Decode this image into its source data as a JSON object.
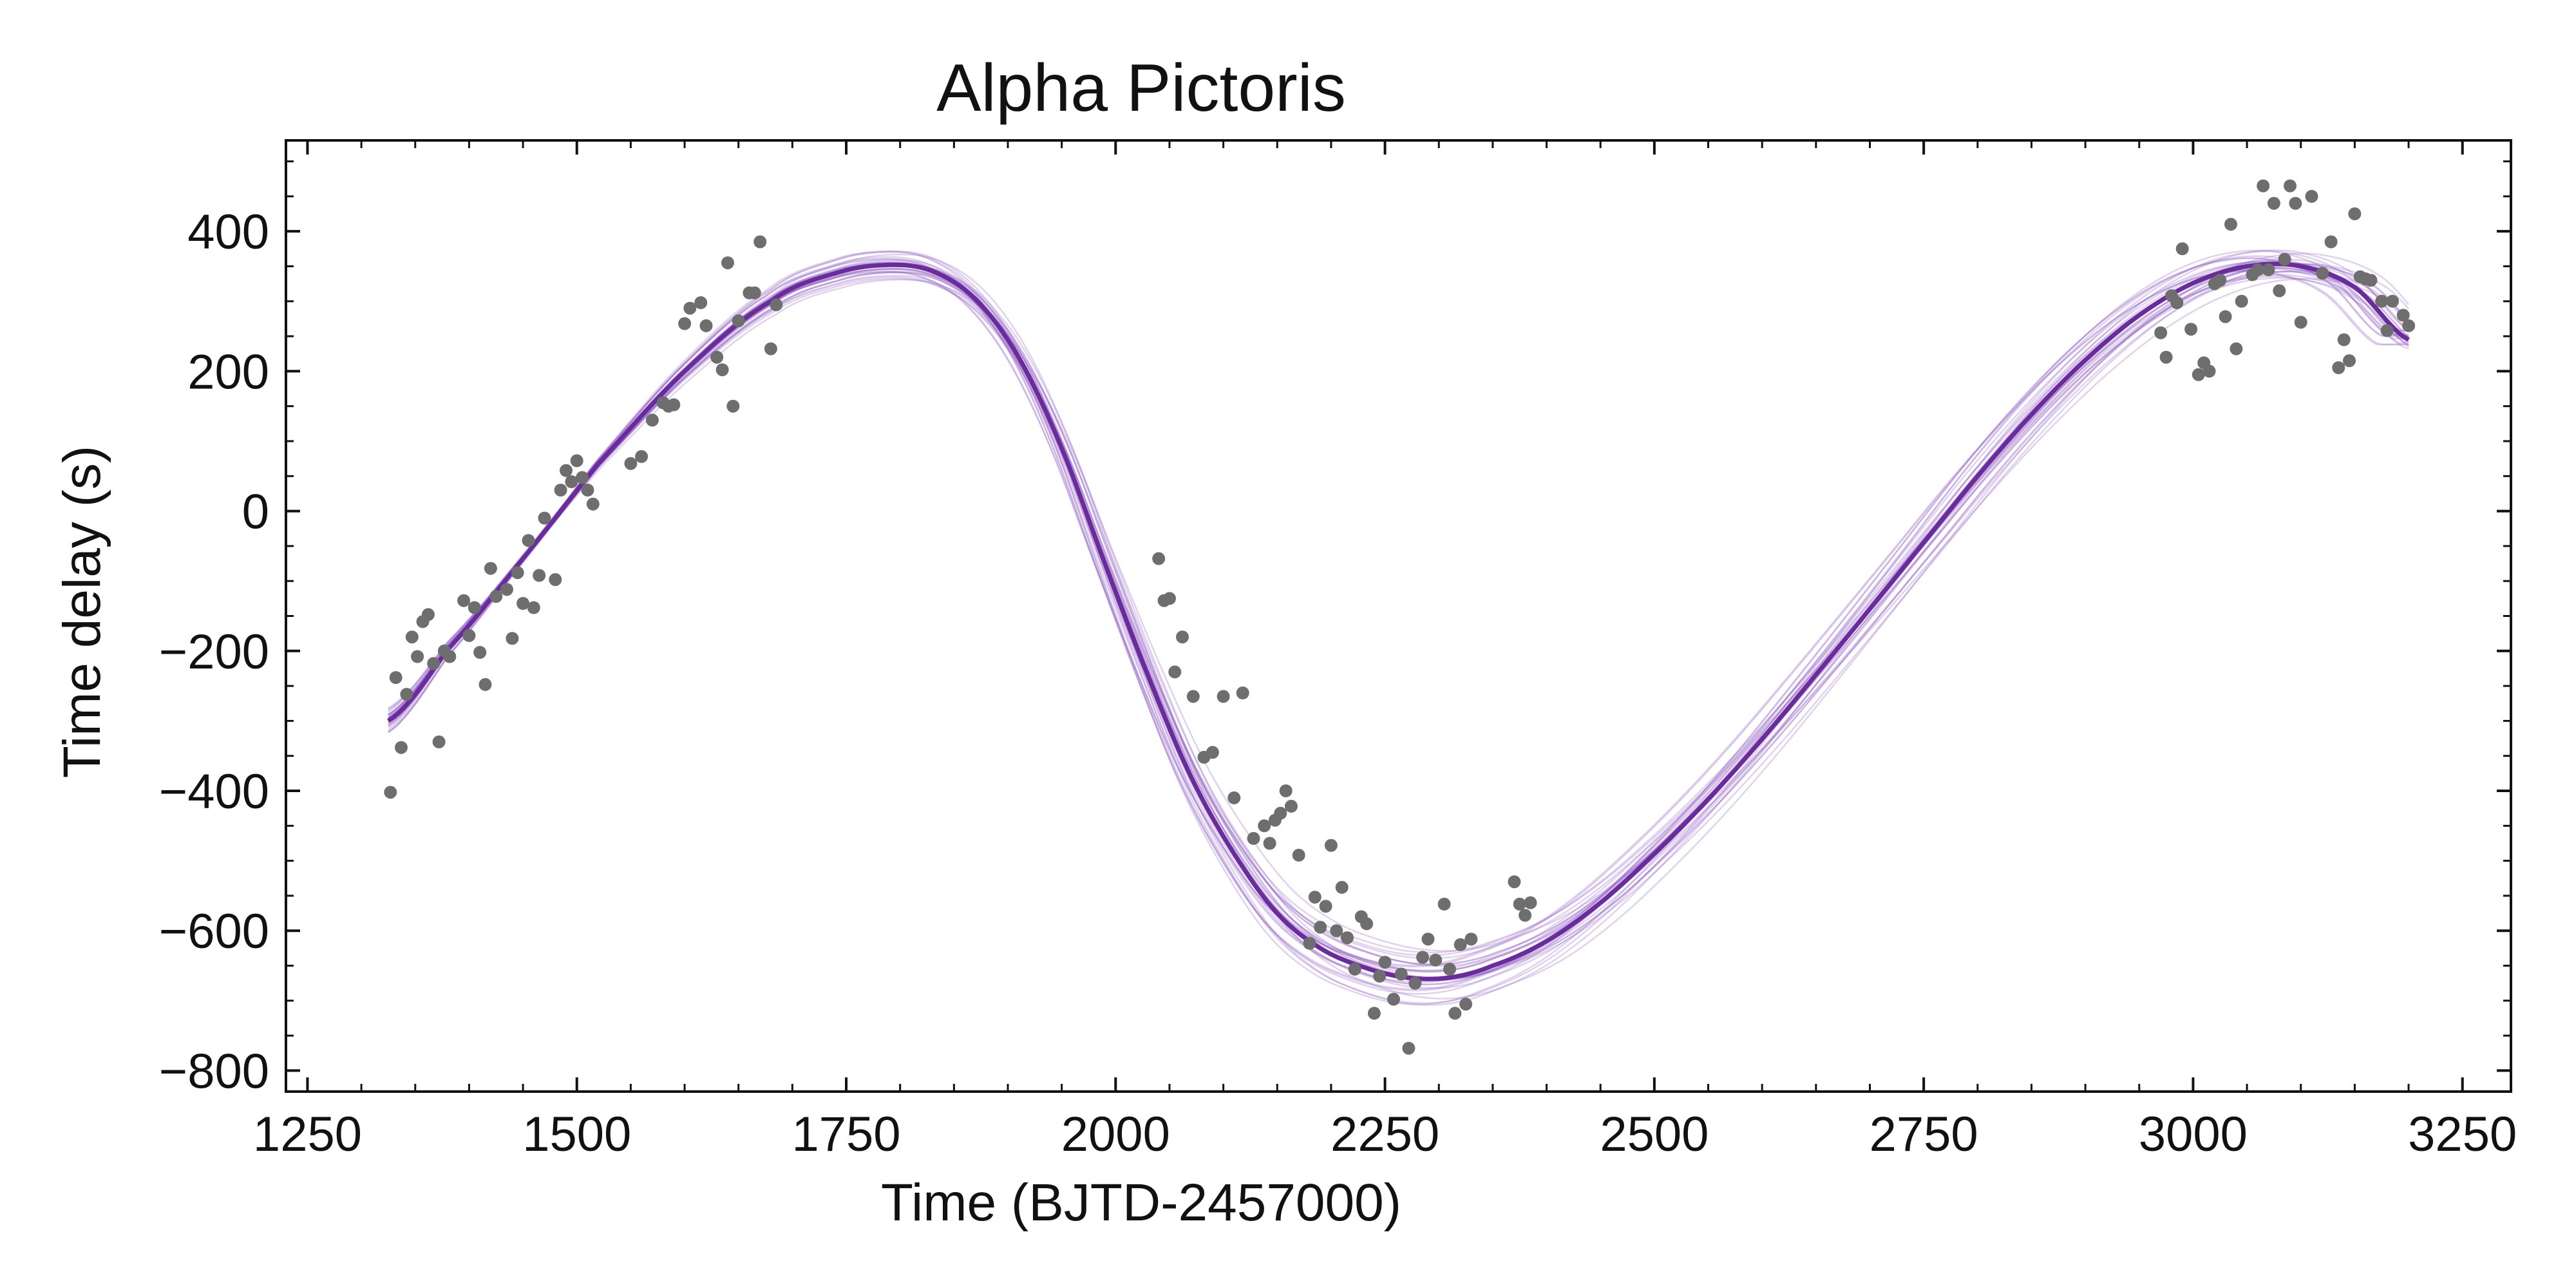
{
  "chart_data": {
    "type": "scatter",
    "title": "Alpha Pictoris",
    "xlabel": "Time (BJTD-2457000)",
    "ylabel": "Time delay (s)",
    "xlim": [
      1230,
      3295
    ],
    "ylim": [
      -830,
      530
    ],
    "x_ticks": [
      1250,
      1500,
      1750,
      2000,
      2250,
      2500,
      2750,
      3000,
      3250
    ],
    "x_tick_labels": [
      "1250",
      "1500",
      "1750",
      "2000",
      "2250",
      "2500",
      "2750",
      "3000",
      "3250"
    ],
    "y_ticks": [
      -800,
      -600,
      -400,
      -200,
      0,
      200,
      400
    ],
    "y_tick_labels": [
      "−800",
      "−600",
      "−400",
      "−200",
      "0",
      "200",
      "400"
    ],
    "grid": false,
    "colors": {
      "points": "#6e6e6e",
      "model": "#6a2c9c",
      "samples": "#8e5cc2"
    },
    "model_curve": {
      "x": [
        1325,
        1380,
        1450,
        1520,
        1600,
        1680,
        1740,
        1790,
        1830,
        1870,
        1910,
        1950,
        1990,
        2030,
        2070,
        2110,
        2150,
        2190,
        2230,
        2270,
        2310,
        2350,
        2400,
        2450,
        2500,
        2550,
        2600,
        2650,
        2700,
        2750,
        2800,
        2850,
        2900,
        2950,
        3000,
        3050,
        3100,
        3150,
        3200
      ],
      "y": [
        -300,
        -198,
        -68,
        68,
        200,
        300,
        340,
        352,
        343,
        303,
        220,
        90,
        -75,
        -235,
        -380,
        -490,
        -575,
        -625,
        -652,
        -667,
        -667,
        -650,
        -615,
        -560,
        -490,
        -412,
        -326,
        -234,
        -140,
        -45,
        50,
        138,
        216,
        280,
        326,
        350,
        350,
        320,
        245
      ]
    },
    "points": [
      [
        1327,
        -402
      ],
      [
        1332,
        -238
      ],
      [
        1337,
        -338
      ],
      [
        1342,
        -262
      ],
      [
        1347,
        -180
      ],
      [
        1352,
        -208
      ],
      [
        1357,
        -158
      ],
      [
        1362,
        -148
      ],
      [
        1367,
        -218
      ],
      [
        1372,
        -330
      ],
      [
        1377,
        -200
      ],
      [
        1382,
        -208
      ],
      [
        1395,
        -128
      ],
      [
        1400,
        -178
      ],
      [
        1405,
        -138
      ],
      [
        1410,
        -202
      ],
      [
        1415,
        -248
      ],
      [
        1420,
        -82
      ],
      [
        1425,
        -122
      ],
      [
        1435,
        -112
      ],
      [
        1440,
        -182
      ],
      [
        1445,
        -88
      ],
      [
        1450,
        -132
      ],
      [
        1455,
        -42
      ],
      [
        1460,
        -138
      ],
      [
        1465,
        -92
      ],
      [
        1470,
        -10
      ],
      [
        1480,
        -98
      ],
      [
        1485,
        30
      ],
      [
        1490,
        58
      ],
      [
        1495,
        42
      ],
      [
        1500,
        72
      ],
      [
        1505,
        48
      ],
      [
        1510,
        30
      ],
      [
        1515,
        10
      ],
      [
        1550,
        68
      ],
      [
        1560,
        78
      ],
      [
        1570,
        130
      ],
      [
        1580,
        155
      ],
      [
        1585,
        150
      ],
      [
        1590,
        152
      ],
      [
        1600,
        268
      ],
      [
        1605,
        290
      ],
      [
        1615,
        298
      ],
      [
        1620,
        265
      ],
      [
        1630,
        220
      ],
      [
        1635,
        202
      ],
      [
        1640,
        355
      ],
      [
        1645,
        150
      ],
      [
        1650,
        272
      ],
      [
        1660,
        312
      ],
      [
        1665,
        312
      ],
      [
        1670,
        385
      ],
      [
        1680,
        232
      ],
      [
        1685,
        295
      ],
      [
        2040,
        -68
      ],
      [
        2045,
        -128
      ],
      [
        2050,
        -125
      ],
      [
        2055,
        -230
      ],
      [
        2062,
        -180
      ],
      [
        2072,
        -265
      ],
      [
        2082,
        -352
      ],
      [
        2090,
        -345
      ],
      [
        2100,
        -265
      ],
      [
        2110,
        -410
      ],
      [
        2118,
        -260
      ],
      [
        2128,
        -468
      ],
      [
        2138,
        -450
      ],
      [
        2143,
        -475
      ],
      [
        2148,
        -442
      ],
      [
        2153,
        -432
      ],
      [
        2158,
        -400
      ],
      [
        2163,
        -422
      ],
      [
        2170,
        -492
      ],
      [
        2180,
        -618
      ],
      [
        2185,
        -552
      ],
      [
        2190,
        -595
      ],
      [
        2195,
        -565
      ],
      [
        2200,
        -478
      ],
      [
        2205,
        -600
      ],
      [
        2210,
        -538
      ],
      [
        2215,
        -610
      ],
      [
        2222,
        -655
      ],
      [
        2228,
        -580
      ],
      [
        2233,
        -590
      ],
      [
        2240,
        -718
      ],
      [
        2245,
        -665
      ],
      [
        2250,
        -645
      ],
      [
        2258,
        -698
      ],
      [
        2265,
        -662
      ],
      [
        2272,
        -768
      ],
      [
        2278,
        -675
      ],
      [
        2285,
        -638
      ],
      [
        2290,
        -612
      ],
      [
        2297,
        -642
      ],
      [
        2305,
        -562
      ],
      [
        2310,
        -655
      ],
      [
        2315,
        -718
      ],
      [
        2320,
        -620
      ],
      [
        2325,
        -705
      ],
      [
        2330,
        -612
      ],
      [
        2370,
        -530
      ],
      [
        2375,
        -562
      ],
      [
        2380,
        -578
      ],
      [
        2385,
        -560
      ],
      [
        2970,
        255
      ],
      [
        2975,
        220
      ],
      [
        2980,
        308
      ],
      [
        2985,
        298
      ],
      [
        2990,
        375
      ],
      [
        2998,
        260
      ],
      [
        3005,
        195
      ],
      [
        3010,
        212
      ],
      [
        3015,
        200
      ],
      [
        3020,
        325
      ],
      [
        3025,
        330
      ],
      [
        3030,
        278
      ],
      [
        3035,
        410
      ],
      [
        3040,
        232
      ],
      [
        3045,
        300
      ],
      [
        3055,
        338
      ],
      [
        3060,
        345
      ],
      [
        3065,
        465
      ],
      [
        3070,
        345
      ],
      [
        3075,
        440
      ],
      [
        3080,
        315
      ],
      [
        3085,
        360
      ],
      [
        3090,
        465
      ],
      [
        3095,
        440
      ],
      [
        3100,
        270
      ],
      [
        3110,
        450
      ],
      [
        3120,
        340
      ],
      [
        3128,
        385
      ],
      [
        3135,
        205
      ],
      [
        3140,
        245
      ],
      [
        3145,
        215
      ],
      [
        3150,
        425
      ],
      [
        3155,
        335
      ],
      [
        3160,
        332
      ],
      [
        3165,
        330
      ],
      [
        3175,
        300
      ],
      [
        3180,
        258
      ],
      [
        3185,
        300
      ],
      [
        3195,
        280
      ],
      [
        3200,
        265
      ]
    ]
  }
}
